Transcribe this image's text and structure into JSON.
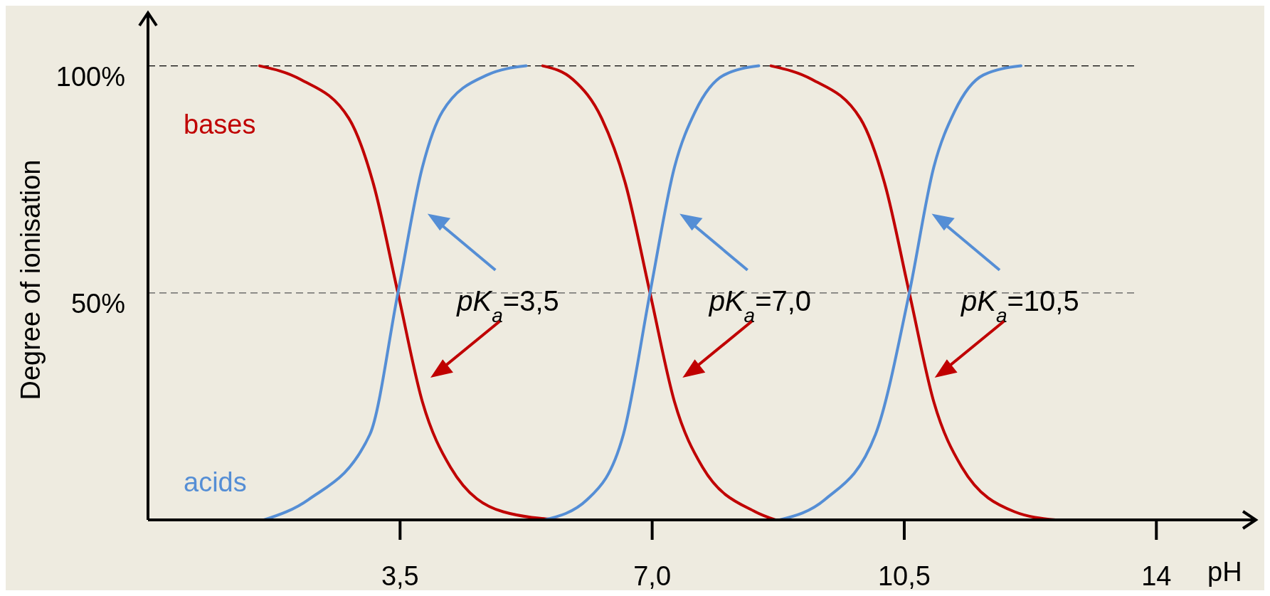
{
  "chart_data": {
    "type": "line",
    "xlabel": "pH",
    "ylabel": "Degree of ionisation",
    "xlim": [
      0,
      15.4
    ],
    "ylim": [
      0,
      112
    ],
    "xticks": [
      {
        "value": 3.5,
        "label": "3,5"
      },
      {
        "value": 7,
        "label": "7,0"
      },
      {
        "value": 10.5,
        "label": "10,5"
      },
      14
    ],
    "yticks": [
      {
        "value": 50,
        "label": "50%"
      },
      {
        "value": 100,
        "label": "100%"
      }
    ],
    "grid": false,
    "line_style": "solid",
    "marker": "none",
    "ref_lines": [
      {
        "axis": "y",
        "value": 100,
        "label": null,
        "color": "#000000",
        "line_style": "dashed"
      },
      {
        "axis": "y",
        "value": 50,
        "label": null,
        "color": "#555555",
        "line_style": "dashed"
      }
    ],
    "series": [
      {
        "name": "bases",
        "color": "#c00000",
        "x": [
          1.55,
          2.12,
          2.79,
          3.13,
          3.47,
          3.81,
          4.2,
          4.93,
          5.72,
          5.6,
          5.48,
          5.9,
          6.3,
          6.63,
          6.97,
          7.31,
          7.7,
          8.43,
          8.71,
          8.68,
          8.65,
          9.22,
          9.89,
          10.23,
          10.57,
          10.91,
          11.3,
          12.03,
          12.6
        ],
        "values": [
          100,
          97,
          88.4,
          74,
          50,
          26,
          11.6,
          1.8,
          0,
          null,
          100,
          97,
          88.4,
          74,
          50,
          26,
          11.6,
          1.8,
          0,
          null,
          100,
          97,
          88.4,
          74,
          50,
          26,
          11.6,
          1.8,
          0
        ]
      },
      {
        "name": "acids",
        "color": "#558ed5",
        "x": [
          1.61,
          2.23,
          3.08,
          3.47,
          3.81,
          4.09,
          4.71,
          5.25,
          5.4,
          5.5,
          6.1,
          6.6,
          6.97,
          7.31,
          7.6,
          8.0,
          8.48,
          8.6,
          8.77,
          9.4,
          10.1,
          10.57,
          10.91,
          11.2,
          11.6,
          12.12
        ],
        "values": [
          0,
          4.5,
          18.8,
          50,
          77.7,
          90,
          98,
          100,
          null,
          0,
          4.5,
          18.8,
          50,
          77.7,
          90,
          98,
          100,
          null,
          0,
          4.5,
          18.8,
          50,
          77.7,
          90,
          98,
          100
        ]
      }
    ],
    "annotations": [
      {
        "text": "pK$_{a}$=3,5",
        "x": 3.5,
        "y": 50
      },
      {
        "text": "pK$_{a}$=7,0",
        "x": 7,
        "y": 50
      },
      {
        "text": "pK$_{a}$=10,5",
        "x": 10.5,
        "y": 50
      }
    ]
  }
}
